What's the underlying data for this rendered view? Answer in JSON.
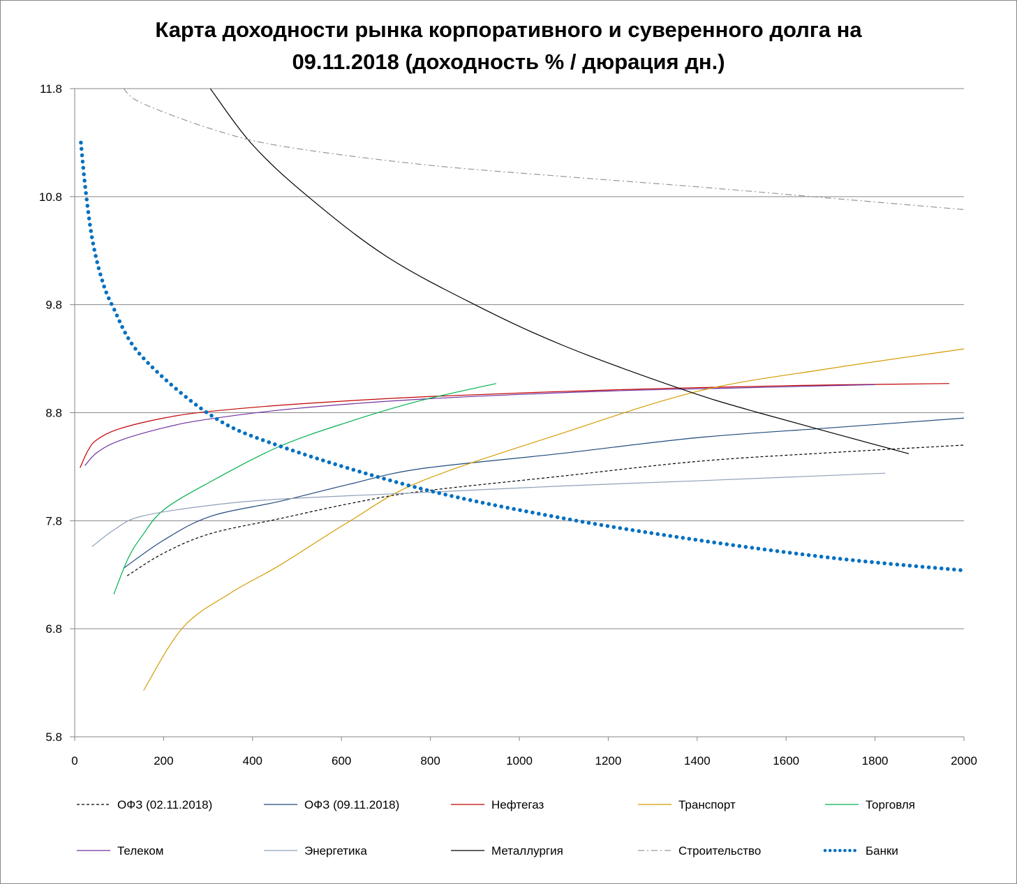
{
  "chart_data": {
    "type": "line",
    "title_line1": "Карта доходности рынка корпоративного и суверенного долга на",
    "title_line2": "09.11.2018 (доходность % / дюрация дн.)",
    "xlabel": "",
    "ylabel": "",
    "xlim": [
      0,
      2000
    ],
    "ylim": [
      5.8,
      11.8
    ],
    "x_ticks": [
      "0",
      "200",
      "400",
      "600",
      "800",
      "1000",
      "1200",
      "1400",
      "1600",
      "1800",
      "2000"
    ],
    "y_ticks": [
      "5.8",
      "6.8",
      "7.8",
      "8.8",
      "9.8",
      "10.8",
      "11.8"
    ],
    "grid": true,
    "legend_position": "bottom",
    "series": [
      {
        "name": "ОФЗ (02.11.2018)",
        "color": "#000000",
        "style": "dashed",
        "x": [
          118,
          200,
          305,
          462,
          620,
          776,
          1089,
          1403,
          1700,
          2000
        ],
        "y": [
          7.29,
          7.5,
          7.68,
          7.82,
          7.96,
          8.07,
          8.21,
          8.35,
          8.43,
          8.5
        ]
      },
      {
        "name": "ОФЗ (09.11.2018)",
        "color": "#1f497d",
        "style": "solid",
        "x": [
          110,
          200,
          305,
          462,
          620,
          776,
          1089,
          1403,
          1700,
          2000
        ],
        "y": [
          7.36,
          7.62,
          7.84,
          7.98,
          8.14,
          8.28,
          8.42,
          8.57,
          8.66,
          8.75
        ]
      },
      {
        "name": "Нефтегаз",
        "color": "#c00000",
        "style": "solid",
        "x": [
          12,
          30,
          50,
          100,
          200,
          300,
          500,
          800,
          1200,
          1600,
          1967
        ],
        "y": [
          8.29,
          8.45,
          8.55,
          8.65,
          8.75,
          8.81,
          8.88,
          8.95,
          9.01,
          9.05,
          9.07
        ]
      },
      {
        "name": "Транспорт",
        "color": "#d49b00",
        "style": "solid",
        "x": [
          155,
          243,
          350,
          462,
          620,
          776,
          1089,
          1403,
          1700,
          2000
        ],
        "y": [
          6.23,
          6.81,
          7.13,
          7.39,
          7.8,
          8.16,
          8.6,
          9.0,
          9.21,
          9.39
        ]
      },
      {
        "name": "Торговля",
        "color": "#00b050",
        "style": "solid",
        "x": [
          88,
          120,
          150,
          200,
          305,
          462,
          620,
          776,
          948
        ],
        "y": [
          7.12,
          7.45,
          7.65,
          7.9,
          8.16,
          8.49,
          8.72,
          8.91,
          9.07
        ]
      },
      {
        "name": "Телеком",
        "color": "#7030a0",
        "style": "solid",
        "x": [
          23,
          50,
          100,
          200,
          300,
          500,
          800,
          1200,
          1500,
          1800
        ],
        "y": [
          8.31,
          8.43,
          8.54,
          8.66,
          8.74,
          8.84,
          8.93,
          9.0,
          9.03,
          9.06
        ]
      },
      {
        "name": "Энергетика",
        "color": "#8ea0b8",
        "style": "solid",
        "x": [
          39,
          90,
          149,
          300,
          462,
          776,
          1089,
          1403,
          1823
        ],
        "y": [
          7.56,
          7.72,
          7.84,
          7.94,
          8.0,
          8.06,
          8.12,
          8.17,
          8.24
        ]
      },
      {
        "name": "Металлургия",
        "color": "#000000",
        "style": "solid",
        "x": [
          305,
          400,
          525,
          700,
          900,
          1100,
          1364,
          1538,
          1876
        ],
        "y": [
          11.8,
          11.28,
          10.8,
          10.25,
          9.8,
          9.42,
          9.02,
          8.8,
          8.42
        ]
      },
      {
        "name": "Строительство",
        "color": "#969696",
        "style": "dashdot",
        "x": [
          110,
          149,
          305,
          462,
          776,
          1089,
          1403,
          1716,
          2000
        ],
        "y": [
          11.8,
          11.67,
          11.43,
          11.27,
          11.1,
          10.99,
          10.89,
          10.78,
          10.68
        ]
      },
      {
        "name": "Банки",
        "color": "#0070c0",
        "style": "dotted",
        "x": [
          14,
          24,
          39,
          60,
          86,
          149,
          305,
          462,
          776,
          1089,
          1403,
          1716,
          2000
        ],
        "y": [
          11.3,
          10.88,
          10.42,
          10.05,
          9.78,
          9.33,
          8.78,
          8.49,
          8.1,
          7.83,
          7.62,
          7.45,
          7.34
        ]
      }
    ]
  }
}
